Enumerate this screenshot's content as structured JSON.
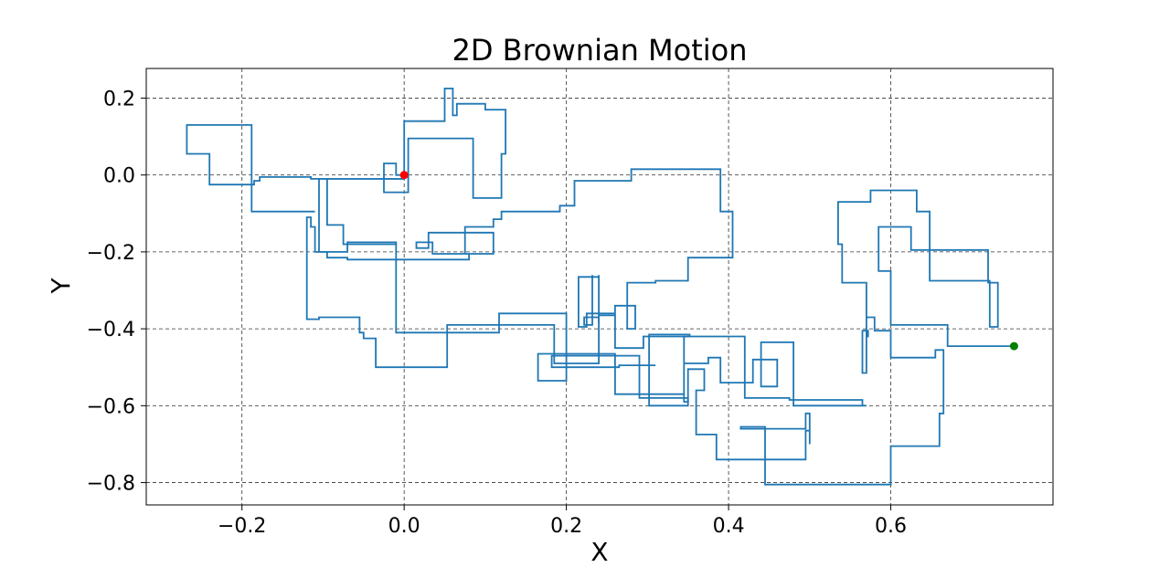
{
  "chart_data": {
    "type": "line",
    "title": "2D Brownian Motion",
    "xlabel": "X",
    "ylabel": "Y",
    "xlim": [
      -0.318,
      0.8
    ],
    "ylim": [
      -0.858,
      0.277
    ],
    "xticks": [
      {
        "value": -0.2,
        "label": "−0.2"
      },
      {
        "value": 0.0,
        "label": "0.0"
      },
      {
        "value": 0.2,
        "label": "0.2"
      },
      {
        "value": 0.4,
        "label": "0.4"
      },
      {
        "value": 0.6,
        "label": "0.6"
      }
    ],
    "yticks": [
      {
        "value": 0.2,
        "label": "0.2"
      },
      {
        "value": 0.0,
        "label": "0.0"
      },
      {
        "value": -0.2,
        "label": "−0.2"
      },
      {
        "value": -0.4,
        "label": "−0.4"
      },
      {
        "value": -0.6,
        "label": "−0.6"
      },
      {
        "value": -0.8,
        "label": "−0.8"
      }
    ],
    "grid": true,
    "series": [
      {
        "color": "#1f77b4",
        "points": [
          [
            0.0,
            0.0
          ],
          [
            -0.01,
            0.0
          ],
          [
            -0.01,
            0.03
          ],
          [
            -0.025,
            0.03
          ],
          [
            -0.025,
            -0.045
          ],
          [
            0.005,
            -0.045
          ],
          [
            0.005,
            0.095
          ],
          [
            0.085,
            0.095
          ],
          [
            0.085,
            -0.06
          ],
          [
            0.12,
            -0.06
          ],
          [
            0.12,
            0.055
          ],
          [
            0.125,
            0.055
          ],
          [
            0.125,
            0.17
          ],
          [
            0.1,
            0.17
          ],
          [
            0.1,
            0.185
          ],
          [
            0.065,
            0.185
          ],
          [
            0.065,
            0.155
          ],
          [
            0.06,
            0.155
          ],
          [
            0.06,
            0.225
          ],
          [
            0.05,
            0.225
          ],
          [
            0.05,
            0.14
          ],
          [
            0.02,
            0.14
          ],
          [
            0.02,
            0.14
          ],
          [
            0.0,
            0.14
          ],
          [
            0.0,
            -0.01
          ],
          [
            -0.095,
            -0.01
          ],
          [
            -0.095,
            -0.13
          ],
          [
            -0.075,
            -0.13
          ],
          [
            -0.075,
            -0.18
          ],
          [
            -0.01,
            -0.18
          ],
          [
            -0.01,
            -0.41
          ],
          [
            0.117,
            -0.41
          ],
          [
            0.117,
            -0.36
          ],
          [
            0.2,
            -0.36
          ],
          [
            0.2,
            -0.535
          ],
          [
            0.165,
            -0.535
          ],
          [
            0.165,
            -0.465
          ],
          [
            0.26,
            -0.465
          ],
          [
            0.26,
            -0.57
          ],
          [
            0.345,
            -0.57
          ],
          [
            0.345,
            -0.49
          ],
          [
            0.375,
            -0.49
          ],
          [
            0.375,
            -0.475
          ],
          [
            0.39,
            -0.475
          ],
          [
            0.39,
            -0.54
          ],
          [
            0.43,
            -0.54
          ],
          [
            0.43,
            -0.48
          ],
          [
            0.46,
            -0.48
          ],
          [
            0.46,
            -0.55
          ],
          [
            0.44,
            -0.55
          ],
          [
            0.44,
            -0.435
          ],
          [
            0.48,
            -0.435
          ],
          [
            0.48,
            -0.6
          ],
          [
            0.57,
            -0.6
          ],
          [
            0.57,
            -0.6
          ],
          [
            0.565,
            -0.6
          ],
          [
            0.565,
            -0.585
          ],
          [
            0.475,
            -0.585
          ],
          [
            0.475,
            -0.58
          ],
          [
            0.42,
            -0.58
          ],
          [
            0.42,
            -0.42
          ],
          [
            0.345,
            -0.42
          ],
          [
            0.345,
            -0.59
          ],
          [
            0.35,
            -0.59
          ],
          [
            0.35,
            -0.505
          ],
          [
            0.37,
            -0.505
          ],
          [
            0.37,
            -0.56
          ],
          [
            0.36,
            -0.56
          ],
          [
            0.36,
            -0.675
          ],
          [
            0.385,
            -0.675
          ],
          [
            0.385,
            -0.74
          ],
          [
            0.495,
            -0.74
          ],
          [
            0.495,
            -0.665
          ],
          [
            0.5,
            -0.665
          ],
          [
            0.5,
            -0.66
          ],
          [
            0.5,
            -0.7
          ],
          [
            0.5,
            -0.62
          ],
          [
            0.495,
            -0.62
          ],
          [
            0.495,
            -0.66
          ],
          [
            0.415,
            -0.66
          ],
          [
            0.415,
            -0.655
          ],
          [
            0.445,
            -0.655
          ],
          [
            0.445,
            -0.805
          ],
          [
            0.6,
            -0.805
          ],
          [
            0.6,
            -0.705
          ],
          [
            0.66,
            -0.705
          ],
          [
            0.66,
            -0.62
          ],
          [
            0.665,
            -0.62
          ],
          [
            0.665,
            -0.455
          ],
          [
            0.655,
            -0.455
          ],
          [
            0.655,
            -0.475
          ],
          [
            0.6,
            -0.475
          ],
          [
            0.6,
            -0.405
          ],
          [
            0.58,
            -0.405
          ],
          [
            0.58,
            -0.37
          ],
          [
            0.57,
            -0.37
          ],
          [
            0.57,
            -0.515
          ],
          [
            0.57,
            -0.515
          ],
          [
            0.57,
            -0.42
          ],
          [
            0.572,
            -0.42
          ],
          [
            0.572,
            -0.405
          ],
          [
            0.565,
            -0.405
          ],
          [
            0.565,
            -0.515
          ],
          [
            0.57,
            -0.515
          ],
          [
            0.57,
            -0.28
          ],
          [
            0.54,
            -0.28
          ],
          [
            0.54,
            -0.18
          ],
          [
            0.535,
            -0.18
          ],
          [
            0.535,
            -0.07
          ],
          [
            0.575,
            -0.07
          ],
          [
            0.575,
            -0.04
          ],
          [
            0.632,
            -0.04
          ],
          [
            0.632,
            -0.095
          ],
          [
            0.648,
            -0.095
          ],
          [
            0.648,
            -0.275
          ],
          [
            0.722,
            -0.275
          ],
          [
            0.722,
            -0.395
          ],
          [
            0.732,
            -0.395
          ],
          [
            0.732,
            -0.28
          ],
          [
            0.72,
            -0.28
          ],
          [
            0.72,
            -0.195
          ],
          [
            0.625,
            -0.195
          ],
          [
            0.625,
            -0.135
          ],
          [
            0.585,
            -0.135
          ],
          [
            0.585,
            -0.25
          ],
          [
            0.6,
            -0.25
          ],
          [
            0.6,
            -0.39
          ],
          [
            0.67,
            -0.39
          ],
          [
            0.67,
            -0.445
          ],
          [
            0.752,
            -0.445
          ]
        ]
      },
      {
        "color": "#1f77b4",
        "points": [
          [
            -0.01,
            -0.18
          ],
          [
            -0.01,
            -0.175
          ],
          [
            -0.07,
            -0.175
          ],
          [
            -0.07,
            -0.2
          ],
          [
            -0.11,
            -0.2
          ],
          [
            -0.11,
            -0.135
          ],
          [
            -0.115,
            -0.135
          ],
          [
            -0.115,
            -0.11
          ],
          [
            -0.12,
            -0.11
          ],
          [
            -0.12,
            -0.375
          ],
          [
            -0.105,
            -0.375
          ],
          [
            -0.105,
            -0.37
          ],
          [
            -0.055,
            -0.37
          ],
          [
            -0.055,
            -0.41
          ],
          [
            -0.05,
            -0.41
          ],
          [
            -0.05,
            -0.425
          ],
          [
            -0.035,
            -0.425
          ],
          [
            -0.035,
            -0.5
          ],
          [
            0.053,
            -0.5
          ],
          [
            0.053,
            -0.39
          ],
          [
            0.118,
            -0.39
          ],
          [
            0.118,
            -0.39
          ],
          [
            0.185,
            -0.39
          ],
          [
            0.185,
            -0.49
          ],
          [
            0.24,
            -0.49
          ],
          [
            0.24,
            -0.37
          ],
          [
            0.222,
            -0.37
          ],
          [
            0.222,
            -0.39
          ],
          [
            0.232,
            -0.39
          ],
          [
            0.232,
            -0.26
          ]
        ]
      },
      {
        "color": "#1f77b4",
        "points": [
          [
            -0.095,
            -0.01
          ],
          [
            -0.105,
            -0.01
          ],
          [
            -0.105,
            -0.2
          ],
          [
            -0.095,
            -0.2
          ],
          [
            -0.095,
            -0.215
          ],
          [
            -0.07,
            -0.215
          ],
          [
            -0.07,
            -0.22
          ],
          [
            -0.065,
            -0.22
          ],
          [
            -0.065,
            -0.22
          ],
          [
            0.08,
            -0.22
          ],
          [
            0.08,
            -0.205
          ],
          [
            0.035,
            -0.205
          ],
          [
            0.035,
            -0.175
          ],
          [
            0.015,
            -0.175
          ],
          [
            0.015,
            -0.19
          ],
          [
            0.03,
            -0.19
          ],
          [
            0.03,
            -0.15
          ],
          [
            0.11,
            -0.15
          ],
          [
            0.11,
            -0.205
          ],
          [
            0.075,
            -0.205
          ],
          [
            0.075,
            -0.135
          ],
          [
            0.11,
            -0.135
          ],
          [
            0.11,
            -0.115
          ],
          [
            0.12,
            -0.115
          ],
          [
            0.12,
            -0.095
          ],
          [
            0.192,
            -0.095
          ],
          [
            0.192,
            -0.08
          ],
          [
            0.21,
            -0.08
          ],
          [
            0.21,
            -0.015
          ],
          [
            0.28,
            -0.015
          ],
          [
            0.28,
            0.015
          ],
          [
            0.39,
            0.015
          ],
          [
            0.39,
            -0.095
          ],
          [
            0.405,
            -0.095
          ],
          [
            0.405,
            -0.215
          ],
          [
            0.35,
            -0.215
          ],
          [
            0.35,
            -0.275
          ],
          [
            0.31,
            -0.275
          ],
          [
            0.31,
            -0.28
          ],
          [
            0.275,
            -0.28
          ],
          [
            0.275,
            -0.4
          ],
          [
            0.285,
            -0.4
          ],
          [
            0.285,
            -0.34
          ],
          [
            0.26,
            -0.34
          ],
          [
            0.26,
            -0.365
          ],
          [
            0.24,
            -0.365
          ],
          [
            0.24,
            -0.385
          ],
          [
            0.24,
            -0.26
          ],
          [
            0.24,
            -0.265
          ],
          [
            0.215,
            -0.265
          ],
          [
            0.215,
            -0.395
          ],
          [
            0.225,
            -0.395
          ],
          [
            0.225,
            -0.36
          ],
          [
            0.26,
            -0.36
          ],
          [
            0.26,
            -0.45
          ],
          [
            0.295,
            -0.45
          ],
          [
            0.295,
            -0.42
          ],
          [
            0.352,
            -0.42
          ],
          [
            0.352,
            -0.415
          ],
          [
            0.302,
            -0.415
          ],
          [
            0.302,
            -0.6
          ],
          [
            0.35,
            -0.6
          ],
          [
            0.35,
            -0.58
          ],
          [
            0.29,
            -0.58
          ],
          [
            0.29,
            -0.47
          ],
          [
            0.182,
            -0.47
          ],
          [
            0.182,
            -0.5
          ],
          [
            0.265,
            -0.5
          ],
          [
            0.265,
            -0.495
          ],
          [
            0.31,
            -0.495
          ]
        ]
      },
      {
        "color": "#1f77b4",
        "points": [
          [
            0.0,
            -0.01
          ],
          [
            -0.115,
            -0.01
          ],
          [
            -0.115,
            -0.005
          ],
          [
            -0.135,
            -0.005
          ],
          [
            -0.135,
            -0.005
          ],
          [
            -0.178,
            -0.005
          ],
          [
            -0.178,
            -0.015
          ],
          [
            -0.185,
            -0.015
          ],
          [
            -0.185,
            -0.025
          ],
          [
            -0.24,
            -0.025
          ],
          [
            -0.24,
            0.055
          ],
          [
            -0.268,
            0.055
          ],
          [
            -0.268,
            0.13
          ],
          [
            -0.188,
            0.13
          ],
          [
            -0.188,
            -0.095
          ],
          [
            -0.11,
            -0.095
          ]
        ]
      }
    ],
    "markers": [
      {
        "name": "start",
        "x": 0.0,
        "y": 0.0,
        "color": "#ff0000"
      },
      {
        "name": "end",
        "x": 0.752,
        "y": -0.445,
        "color": "#008000"
      }
    ]
  }
}
